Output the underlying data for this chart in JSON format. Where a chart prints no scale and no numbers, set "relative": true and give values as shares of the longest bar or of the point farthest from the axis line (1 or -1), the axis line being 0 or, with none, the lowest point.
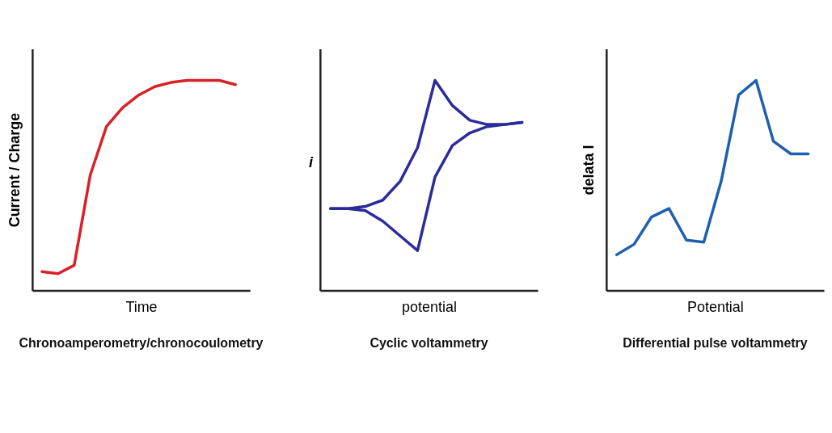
{
  "chart_data": [
    {
      "type": "line",
      "relative": true,
      "title": "Chronoamperometry/chronocoulometry",
      "xlabel": "Time",
      "ylabel": "Current / Charge",
      "categories": [
        null,
        null,
        null,
        null,
        null,
        null,
        null,
        null,
        null,
        null,
        null,
        null,
        null
      ],
      "series": [
        {
          "color": "#d92027",
          "values": [
            0.09,
            0.08,
            0.12,
            0.55,
            0.78,
            0.87,
            0.93,
            0.97,
            0.99,
            1.0,
            1.0,
            1.0,
            0.98
          ]
        }
      ]
    },
    {
      "type": "line",
      "relative": true,
      "title": "Cyclic voltammetry",
      "xlabel": "potential",
      "ylabel": "i",
      "categories": [
        null,
        null,
        null,
        null,
        null,
        null,
        null,
        null,
        null,
        null,
        null,
        null
      ],
      "series": [
        {
          "color": "#2b2b9a",
          "values": [
            0.39,
            0.39,
            0.4,
            0.43,
            0.52,
            0.68,
            1.0,
            0.88,
            0.81,
            0.79,
            0.79,
            0.8
          ]
        },
        {
          "color": "#2b2b9a",
          "values": [
            0.39,
            0.39,
            0.38,
            0.33,
            0.26,
            0.19,
            0.54,
            0.69,
            0.75,
            0.78,
            0.79,
            0.8
          ]
        }
      ]
    },
    {
      "type": "line",
      "relative": true,
      "title": "Differential pulse voltammetry",
      "xlabel": "Potential",
      "ylabel": "delata I",
      "categories": [
        null,
        null,
        null,
        null,
        null,
        null,
        null,
        null,
        null,
        null,
        null,
        null
      ],
      "series": [
        {
          "color": "#1f5fb0",
          "values": [
            0.17,
            0.22,
            0.35,
            0.39,
            0.24,
            0.23,
            0.52,
            0.93,
            1.0,
            0.71,
            0.65,
            0.65
          ]
        }
      ]
    }
  ]
}
